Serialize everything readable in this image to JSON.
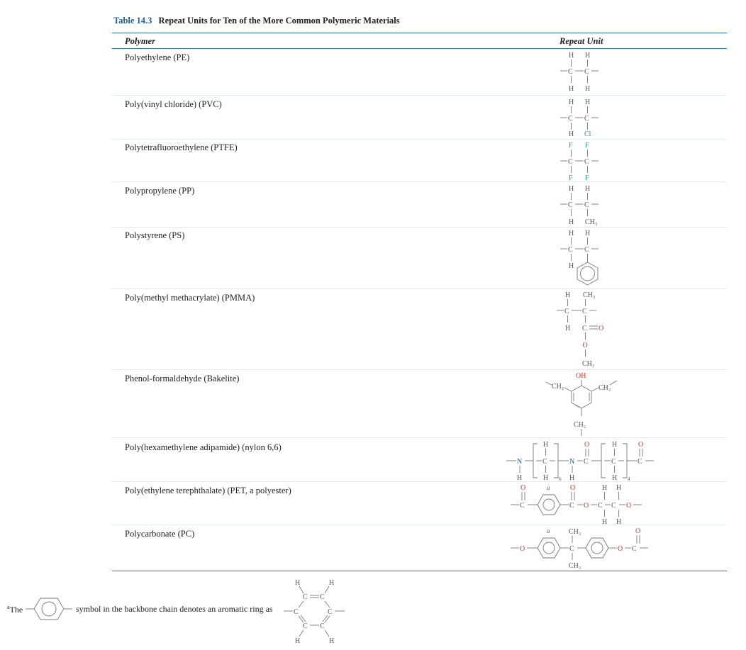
{
  "table": {
    "number": "Table 14.3",
    "title": "Repeat Units for Ten of the More Common Polymeric Materials",
    "col_polymer": "Polymer",
    "col_repeat": "Repeat Unit",
    "rows": [
      {
        "name": "Polyethylene (PE)"
      },
      {
        "name": "Poly(vinyl chloride) (PVC)"
      },
      {
        "name": "Polytetrafluoroethylene (PTFE)"
      },
      {
        "name": "Polypropylene (PP)"
      },
      {
        "name": "Polystyrene (PS)"
      },
      {
        "name": "Poly(methyl methacrylate) (PMMA)"
      },
      {
        "name": "Phenol-formaldehyde (Bakelite)"
      },
      {
        "name": "Poly(hexamethylene adipamide) (nylon 6,6)"
      },
      {
        "name": "Poly(ethylene terephthalate) (PET, a polyester)"
      },
      {
        "name": "Polycarbonate (PC)"
      }
    ]
  },
  "atoms": {
    "H": "H",
    "C": "C",
    "Cl": "Cl",
    "F": "F",
    "O": "O",
    "N": "N",
    "CH3": "CH₃",
    "CH2": "CH₂",
    "OH": "OH",
    "a": "a",
    "six": "6",
    "four": "4"
  },
  "footnote": {
    "marker": "a",
    "lead": "The",
    "text": "symbol in the backbone chain denotes an aromatic ring as"
  }
}
